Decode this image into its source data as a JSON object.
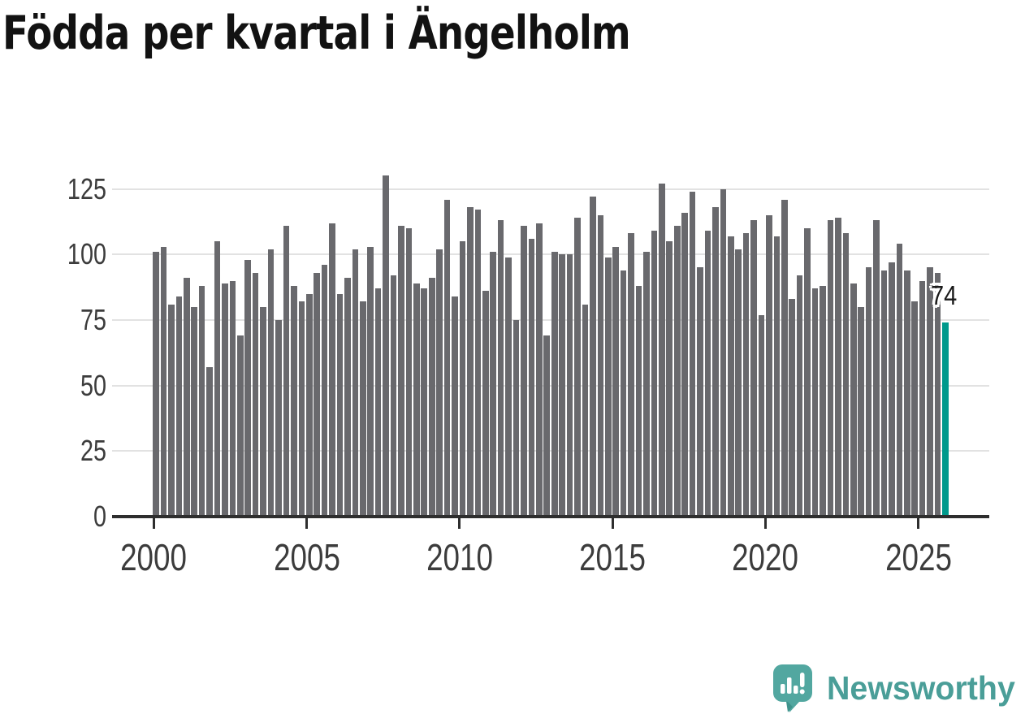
{
  "header": {
    "title": "Födda per kvartal i Ängelholm"
  },
  "chart_data": {
    "type": "bar",
    "title": "Födda per kvartal i Ängelholm",
    "xlabel": "",
    "ylabel": "",
    "frequency": "quarterly",
    "period_start": "2000 Q1",
    "period_end": "2025 Q4",
    "x_tick_labels": [
      "2000",
      "2005",
      "2010",
      "2015",
      "2020",
      "2025"
    ],
    "y_tick_labels": [
      "0",
      "25",
      "50",
      "75",
      "100",
      "125"
    ],
    "ylim": [
      0,
      135
    ],
    "grid": "horizontal",
    "legend": "none",
    "values": [
      101,
      103,
      81,
      84,
      91,
      80,
      88,
      57,
      105,
      89,
      90,
      69,
      98,
      93,
      80,
      102,
      75,
      111,
      88,
      82,
      85,
      93,
      96,
      112,
      85,
      91,
      102,
      82,
      103,
      87,
      130,
      92,
      111,
      110,
      89,
      87,
      91,
      102,
      121,
      84,
      105,
      118,
      117,
      86,
      101,
      113,
      99,
      75,
      111,
      106,
      112,
      69,
      101,
      100,
      100,
      114,
      81,
      122,
      115,
      99,
      103,
      94,
      108,
      88,
      101,
      109,
      127,
      105,
      111,
      116,
      124,
      95,
      109,
      118,
      125,
      107,
      102,
      108,
      113,
      77,
      115,
      107,
      121,
      83,
      92,
      110,
      87,
      88,
      113,
      114,
      108,
      89,
      80,
      95,
      113,
      94,
      97,
      104,
      94,
      82,
      90,
      95,
      93,
      74
    ],
    "bar_color": "#69696d",
    "highlight": {
      "index": 103,
      "value": 74,
      "color": "#00998c",
      "label": "74"
    }
  },
  "branding": {
    "logo_text": "Newsworthy",
    "logo_color": "#4a9e98",
    "logo_icon": "speech-bubble-bar-chart-icon"
  }
}
